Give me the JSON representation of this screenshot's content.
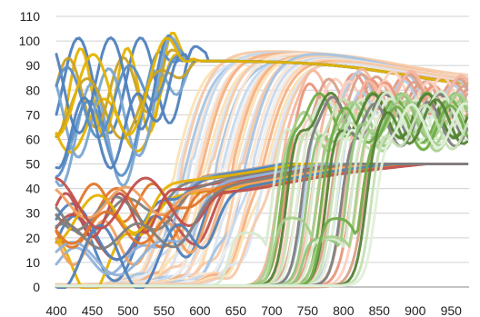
{
  "chart_data": {
    "type": "line",
    "title": "",
    "xlabel": "",
    "ylabel": "",
    "xlim": [
      400,
      975
    ],
    "ylim": [
      0,
      110
    ],
    "grid": true,
    "legend": "none",
    "x_ticks": [
      "400",
      "450",
      "500",
      "550",
      "600",
      "650",
      "700",
      "750",
      "800",
      "850",
      "900",
      "950"
    ],
    "y_ticks": [
      "0",
      "10",
      "20",
      "30",
      "40",
      "50",
      "60",
      "70",
      "80",
      "90",
      "100",
      "110"
    ],
    "x_tick_values": [
      400,
      450,
      500,
      550,
      600,
      650,
      700,
      750,
      800,
      850,
      900,
      950
    ],
    "y_tick_values": [
      0,
      10,
      20,
      30,
      40,
      50,
      60,
      70,
      80,
      90,
      100,
      110
    ],
    "groups": [
      {
        "kind": "high-oscillating",
        "count": 12,
        "colors": [
          "#4f81bd",
          "#e5b200",
          "#7aa6d0",
          "#c9a227",
          "#5b8fc7"
        ],
        "edge_range": [
          560,
          620
        ],
        "level": 94,
        "low": 55,
        "amplitude": 18
      },
      {
        "kind": "low-oscillating",
        "count": 18,
        "colors": [
          "#e0772a",
          "#4f81bd",
          "#c0504d",
          "#7f7f7f",
          "#e5b200",
          "#8fb2da",
          "#f0a060"
        ],
        "edge_range": [
          520,
          620
        ],
        "level": 46,
        "low": 5,
        "amplitude": 10
      },
      {
        "kind": "pastel-rising",
        "count": 30,
        "colors": [
          "#fbe3b6",
          "#dbe6f3",
          "#f7c9a8",
          "#a7c4e2",
          "#fce6d2",
          "#c6d9ee",
          "#eeeeee",
          "#fcd5b5",
          "#f4b183"
        ],
        "edge_range": [
          565,
          700
        ],
        "level": 96,
        "tail": 78
      },
      {
        "kind": "salmon-mid",
        "count": 14,
        "colors": [
          "#f4b6a0",
          "#e9967a",
          "#fbd0c0",
          "#d9a08a",
          "#b9cbe4"
        ],
        "edge_range": [
          710,
          830
        ],
        "level": 80,
        "tail": 74
      },
      {
        "kind": "green-rising",
        "count": 22,
        "colors": [
          "#d8ead0",
          "#a8d08d",
          "#70ad47",
          "#548235",
          "#c5e0b4",
          "#e2efda",
          "#7f7f7f",
          "#92c47a"
        ],
        "edge_range": [
          700,
          845
        ],
        "level": 66,
        "amplitude": 9
      }
    ]
  }
}
